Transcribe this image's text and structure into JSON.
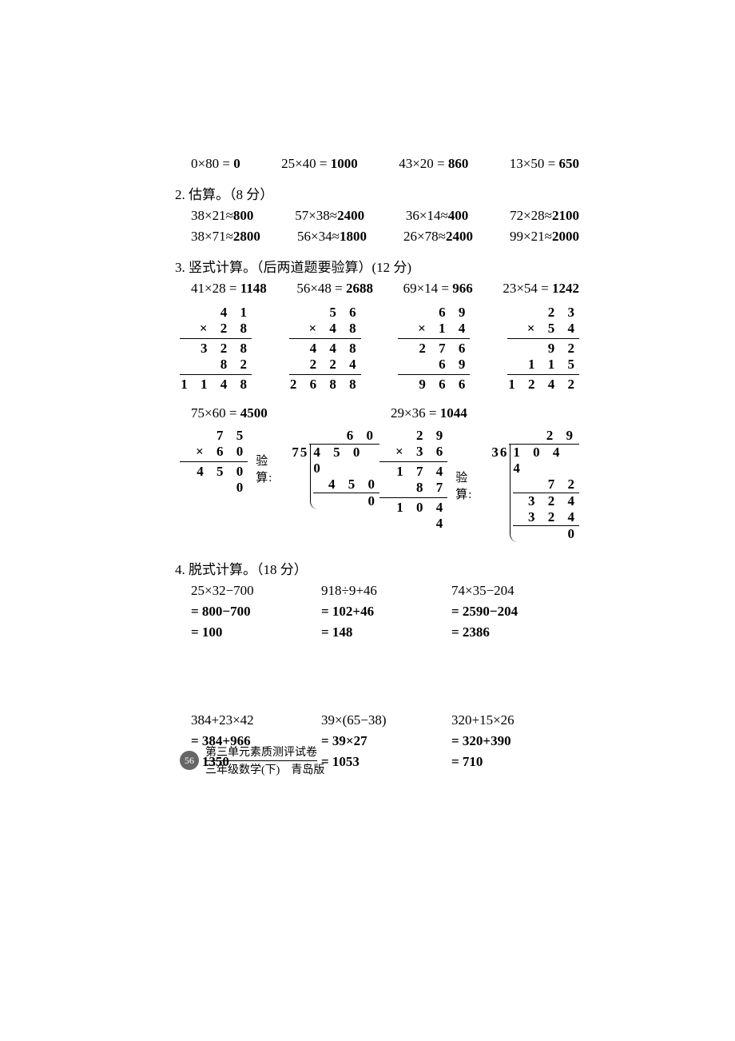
{
  "s1_row": [
    "0×80 = <b>0</b>",
    "25×40 = <b>1000</b>",
    "43×20 = <b>860</b>",
    "13×50 = <b>650</b>"
  ],
  "s2_label": "2.  估算。（8 分）",
  "s2_rows": [
    [
      "38×21≈<b>800</b>",
      "57×38≈<b>2400</b>",
      "36×14≈<b>400</b>",
      "72×28≈<b>2100</b>"
    ],
    [
      "38×71≈<b>2800</b>",
      "56×34≈<b>1800</b>",
      "26×78≈<b>2400</b>",
      "99×21≈<b>2000</b>"
    ]
  ],
  "s3_label": "3.  竖式计算。（后两道题要验算）(12 分)",
  "s3_eq_row": [
    "41×28 = <b>1148</b>",
    "56×48 = <b>2688</b>",
    "69×14 = <b>966</b>",
    "23×54 = <b>1242</b>"
  ],
  "vcols": [
    {
      "rows": [
        "4 1",
        "× 2 8",
        "—",
        "3 2 8",
        "8 2  ",
        "—",
        "1 1 4 8"
      ]
    },
    {
      "rows": [
        "5 6",
        "× 4 8",
        "—",
        "4 4 8",
        "2 2 4  ",
        "—",
        "2 6 8 8"
      ]
    },
    {
      "rows": [
        "6 9",
        "× 1 4",
        "—",
        "2 7 6",
        "6 9  ",
        "—",
        "9 6 6"
      ]
    },
    {
      "rows": [
        "2 3",
        "× 5 4",
        "—",
        "9 2",
        "1 1 5  ",
        "—",
        "1 2 4 2"
      ]
    }
  ],
  "wide": [
    {
      "eq": "75×60 = <b>4500</b>",
      "mult": {
        "rows": [
          "7 5",
          "×   6 0",
          "—",
          "4 5 0 0"
        ]
      },
      "verify_label": "验算:",
      "ldiv": {
        "quot": "6 0",
        "divisor": "75",
        "dividend": "4 5 0 0",
        "steps": [
          [
            "4 5 0  ",
            true
          ],
          [
            "0",
            false
          ]
        ]
      }
    },
    {
      "eq": "29×36 = <b>1044</b>",
      "mult": {
        "rows": [
          "2 9",
          "× 3 6",
          "—",
          "1 7 4",
          "8 7  ",
          "—",
          "1 0 4 4"
        ]
      },
      "verify_label": "验算:",
      "ldiv": {
        "quot": "2 9",
        "divisor": "36",
        "dividend": "1 0 4 4",
        "steps": [
          [
            "7 2  ",
            true
          ],
          [
            "3 2 4",
            false
          ],
          [
            "3 2 4",
            true
          ],
          [
            "0",
            false
          ]
        ]
      }
    }
  ],
  "s4_label": "4.  脱式计算。（18 分）",
  "s4_block1": [
    [
      "25×32−700",
      "918÷9+46",
      "74×35−204"
    ],
    [
      "<b>= 800−700</b>",
      "<b>= 102+46</b>",
      "<b>= 2590−204</b>"
    ],
    [
      "<b>= 100</b>",
      "<b>= 148</b>",
      "<b>= 2386</b>"
    ]
  ],
  "s4_block2": [
    [
      "384+23×42",
      "39×(65−38)",
      "320+15×26"
    ],
    [
      "<b>= 384+966</b>",
      "<b>= 39×27</b>",
      "<b>= 320+390</b>"
    ],
    [
      "<b>= 1350</b>",
      "<b>= 1053</b>",
      "<b>= 710</b>"
    ]
  ],
  "footer": {
    "pagenum": "56",
    "line1": "第三单元素质测评试卷",
    "line2": "三年级数学(下)　青岛版"
  }
}
